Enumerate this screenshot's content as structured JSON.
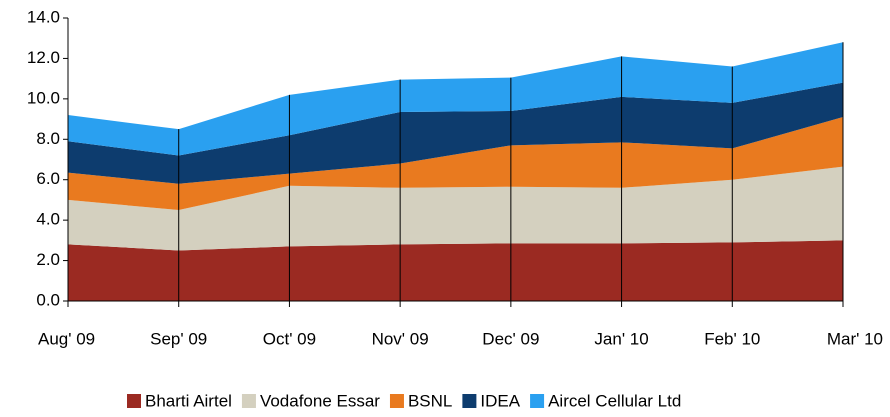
{
  "chart_data": {
    "type": "stacked_area",
    "categories": [
      "Aug' 09",
      "Sep' 09",
      "Oct' 09",
      "Nov' 09",
      "Dec' 09",
      "Jan' 10",
      "Feb' 10",
      "Mar' 10"
    ],
    "series": [
      {
        "name": "Bharti Airtel",
        "color": "#9b2a22",
        "values": [
          2.8,
          2.5,
          2.7,
          2.8,
          2.85,
          2.85,
          2.9,
          3.0
        ]
      },
      {
        "name": "Vodafone Essar",
        "color": "#d4d0bf",
        "values": [
          2.2,
          2.0,
          3.0,
          2.8,
          2.8,
          2.75,
          3.1,
          3.65
        ]
      },
      {
        "name": "BSNL",
        "color": "#e97a1f",
        "values": [
          1.35,
          1.3,
          0.6,
          1.2,
          2.05,
          2.25,
          1.55,
          2.45
        ]
      },
      {
        "name": "IDEA",
        "color": "#0d3c6e",
        "values": [
          1.55,
          1.4,
          1.9,
          2.55,
          1.7,
          2.25,
          2.25,
          1.7
        ]
      },
      {
        "name": "Aircel Cellular Ltd",
        "color": "#2aa0f0",
        "values": [
          1.3,
          1.3,
          2.0,
          1.6,
          1.65,
          2.0,
          1.8,
          2.0
        ]
      }
    ],
    "ylim": [
      0,
      14
    ],
    "yticks": [
      {
        "value": 0,
        "label": "0.0"
      },
      {
        "value": 2,
        "label": "2.0"
      },
      {
        "value": 4,
        "label": "4.0"
      },
      {
        "value": 6,
        "label": "6.0"
      },
      {
        "value": 8,
        "label": "8.0"
      },
      {
        "value": 10,
        "label": "10.0"
      },
      {
        "value": 12,
        "label": "12.0"
      },
      {
        "value": 14,
        "label": "14.0"
      }
    ],
    "legend": "bottom"
  }
}
